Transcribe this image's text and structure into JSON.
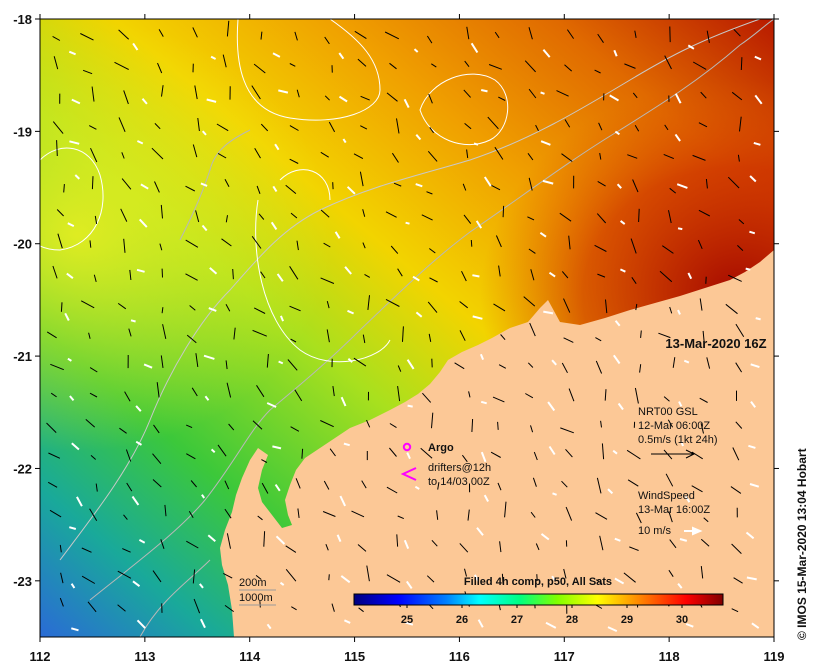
{
  "map": {
    "lon_ticks": [
      "112",
      "113",
      "114",
      "115",
      "116",
      "117",
      "118",
      "119"
    ],
    "lat_ticks": [
      "-18",
      "-19",
      "-20",
      "-21",
      "-22",
      "-23"
    ],
    "lon_range": [
      112,
      119
    ],
    "lat_range": [
      -23.5,
      -18
    ]
  },
  "timestamp": "13-Mar-2020 16Z",
  "legend": {
    "argo_label": "Argo",
    "drifters_line1": "drifters@12h",
    "drifters_line2": "to 14/03 00Z",
    "nrt_line1": "NRT00 GSL",
    "nrt_line2": "12-Mar 06:00Z",
    "nrt_line3": "0.5m/s (1kt 24h)",
    "wind_line1": "WindSpeed",
    "wind_line2": "13-Mar 16:00Z",
    "wind_line3": "10 m/s",
    "isobath_200": "200m",
    "isobath_1000": "1000m"
  },
  "colorbar": {
    "title": "Filled 4h comp, p50, All Sats",
    "ticks": [
      "25",
      "26",
      "27",
      "28",
      "29",
      "30"
    ],
    "colors": [
      "#00007f",
      "#0000ff",
      "#0080ff",
      "#00ffff",
      "#00ff80",
      "#80ff00",
      "#ffff00",
      "#ff8000",
      "#ff0000",
      "#800000"
    ]
  },
  "credit": "© IMOS 15-Mar-2020 13:04 Hobart",
  "colors": {
    "land": "#fcc896",
    "argo": "#ff00ff",
    "drifter": "#ff00ff"
  }
}
